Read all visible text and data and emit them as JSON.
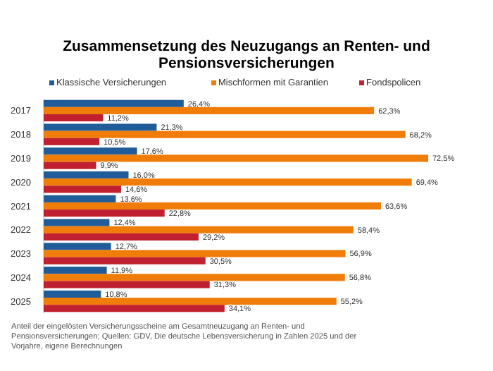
{
  "chart_data": {
    "type": "bar",
    "orientation": "horizontal",
    "title": "Zusammensetzung des Neuzugangs an Renten- und Pensionsversicherungen",
    "categories": [
      "2017",
      "2018",
      "2019",
      "2020",
      "2021",
      "2022",
      "2023",
      "2024",
      "2025"
    ],
    "series": [
      {
        "name": "Klassische Versicherungen",
        "color": "#1f5c99",
        "values": [
          26.4,
          21.3,
          17.6,
          16.0,
          13.6,
          12.4,
          12.7,
          11.9,
          10.8
        ],
        "value_labels": [
          "26,4%",
          "21,3%",
          "17,6%",
          "16,0%",
          "13,6%",
          "12,4%",
          "12,7%",
          "11,9%",
          "10,8%"
        ]
      },
      {
        "name": "Mischformen mit Garantien",
        "color": "#f07d0a",
        "values": [
          62.3,
          68.2,
          72.5,
          69.4,
          63.6,
          58.4,
          56.9,
          56.8,
          55.2
        ],
        "value_labels": [
          "62,3%",
          "68,2%",
          "72,5%",
          "69,4%",
          "63,6%",
          "58,4%",
          "56,9%",
          "56,8%",
          "55,2%"
        ]
      },
      {
        "name": "Fondspolicen",
        "color": "#c0202f",
        "values": [
          11.2,
          10.5,
          9.9,
          14.6,
          22.8,
          29.2,
          30.5,
          31.3,
          34.1
        ],
        "value_labels": [
          "11,2%",
          "10,5%",
          "9,9%",
          "14,6%",
          "22,8%",
          "29,2%",
          "30,5%",
          "31,3%",
          "34,1%"
        ]
      }
    ],
    "legend": "top",
    "grid": false,
    "annotations": [
      "Anteil der eingelösten Versicherungsscheine am Gesamtneuzugang an Renten- und Pensionsversicherungen; Quellen: GDV, Die deutsche Lebensversicherung in Zahlen 2025 und der Vorjahre, eigene Berechnungen"
    ]
  }
}
